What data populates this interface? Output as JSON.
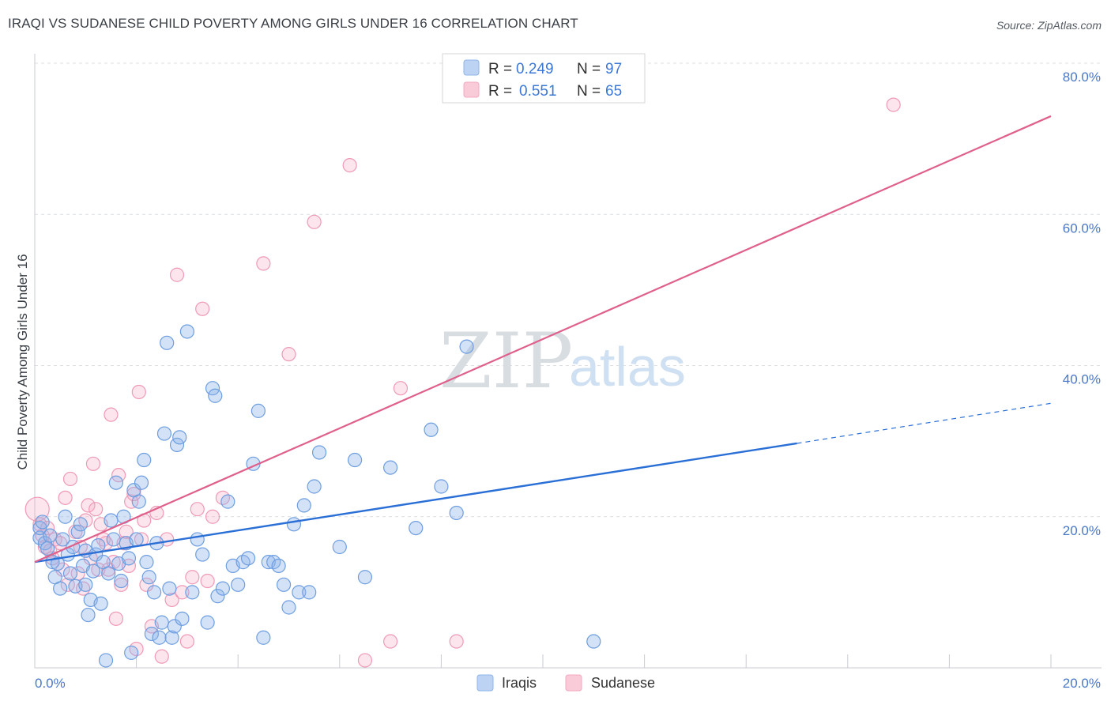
{
  "title": "IRAQI VS SUDANESE CHILD POVERTY AMONG GIRLS UNDER 16 CORRELATION CHART",
  "source": "Source: ZipAtlas.com",
  "watermark": {
    "zip": "ZIP",
    "atlas": "atlas"
  },
  "legend": {
    "rows": [
      {
        "r_label": "R =",
        "r_value": "0.249",
        "n_label": "N =",
        "n_value": "97",
        "color": "#8fb4e8"
      },
      {
        "r_label": "R =",
        "r_value": "0.551",
        "n_label": "N =",
        "n_value": "65",
        "color": "#f4a8c0"
      }
    ]
  },
  "bottom_legend": [
    "Iraqis",
    "Sudanese"
  ],
  "chart_data": {
    "type": "scatter",
    "title": "IRAQI VS SUDANESE CHILD POVERTY AMONG GIRLS UNDER 16 CORRELATION CHART",
    "xlabel": "",
    "ylabel": "Child Poverty Among Girls Under 16",
    "xlim": [
      0,
      20
    ],
    "ylim": [
      0,
      80
    ],
    "x_ticks": [
      "0.0%",
      "20.0%"
    ],
    "y_ticks": [
      "20.0%",
      "40.0%",
      "60.0%",
      "80.0%"
    ],
    "y_tick_values": [
      20,
      40,
      60,
      80
    ],
    "grid": true,
    "colors": {
      "Iraqis": "#2a6fd6",
      "Sudanese": "#e0608c"
    },
    "series": [
      {
        "name": "Iraqis",
        "trend": {
          "x0": 0.0,
          "y0": 14.0,
          "x1": 15.0,
          "y1": 29.7,
          "dash_x1": 20.0,
          "dash_y1": 35.0
        },
        "points": [
          [
            0.1,
            17.2
          ],
          [
            0.1,
            18.5
          ],
          [
            0.15,
            19.3
          ],
          [
            0.2,
            16.5
          ],
          [
            0.25,
            15.8
          ],
          [
            0.3,
            17.5
          ],
          [
            0.35,
            14.0
          ],
          [
            0.4,
            12.0
          ],
          [
            0.45,
            13.8
          ],
          [
            0.5,
            10.5
          ],
          [
            0.55,
            17.0
          ],
          [
            0.6,
            20.0
          ],
          [
            0.65,
            15.0
          ],
          [
            0.7,
            12.5
          ],
          [
            0.75,
            16.0
          ],
          [
            0.8,
            10.8
          ],
          [
            0.85,
            18.0
          ],
          [
            0.9,
            19.0
          ],
          [
            0.95,
            13.5
          ],
          [
            1.0,
            15.5
          ],
          [
            1.0,
            11.0
          ],
          [
            1.05,
            7.0
          ],
          [
            1.1,
            9.0
          ],
          [
            1.15,
            12.8
          ],
          [
            1.2,
            15.0
          ],
          [
            1.25,
            16.2
          ],
          [
            1.3,
            8.5
          ],
          [
            1.35,
            14.0
          ],
          [
            1.4,
            1.0
          ],
          [
            1.45,
            12.5
          ],
          [
            1.5,
            19.5
          ],
          [
            1.55,
            17.0
          ],
          [
            1.6,
            24.5
          ],
          [
            1.65,
            13.8
          ],
          [
            1.7,
            11.5
          ],
          [
            1.75,
            20.0
          ],
          [
            1.8,
            16.5
          ],
          [
            1.85,
            14.5
          ],
          [
            1.9,
            2.0
          ],
          [
            1.95,
            23.5
          ],
          [
            2.0,
            17.0
          ],
          [
            2.05,
            22.0
          ],
          [
            2.1,
            24.5
          ],
          [
            2.15,
            27.5
          ],
          [
            2.2,
            14.0
          ],
          [
            2.25,
            12.0
          ],
          [
            2.3,
            4.5
          ],
          [
            2.35,
            10.0
          ],
          [
            2.4,
            16.5
          ],
          [
            2.45,
            4.0
          ],
          [
            2.5,
            6.0
          ],
          [
            2.55,
            31.0
          ],
          [
            2.6,
            43.0
          ],
          [
            2.65,
            10.5
          ],
          [
            2.7,
            4.0
          ],
          [
            2.75,
            5.5
          ],
          [
            2.8,
            29.5
          ],
          [
            2.85,
            30.5
          ],
          [
            2.9,
            6.5
          ],
          [
            3.0,
            44.5
          ],
          [
            3.1,
            10.0
          ],
          [
            3.2,
            17.0
          ],
          [
            3.3,
            15.0
          ],
          [
            3.4,
            6.0
          ],
          [
            3.5,
            37.0
          ],
          [
            3.55,
            36.0
          ],
          [
            3.6,
            9.5
          ],
          [
            3.7,
            10.5
          ],
          [
            3.8,
            22.0
          ],
          [
            3.9,
            13.5
          ],
          [
            4.0,
            11.0
          ],
          [
            4.1,
            14.0
          ],
          [
            4.2,
            14.5
          ],
          [
            4.3,
            27.0
          ],
          [
            4.4,
            34.0
          ],
          [
            4.5,
            4.0
          ],
          [
            4.6,
            14.0
          ],
          [
            4.7,
            14.0
          ],
          [
            4.8,
            13.5
          ],
          [
            4.9,
            11.0
          ],
          [
            5.0,
            8.0
          ],
          [
            5.1,
            19.0
          ],
          [
            5.2,
            10.0
          ],
          [
            5.3,
            21.5
          ],
          [
            5.4,
            10.0
          ],
          [
            5.5,
            24.0
          ],
          [
            5.6,
            28.5
          ],
          [
            6.0,
            16.0
          ],
          [
            6.3,
            27.5
          ],
          [
            6.5,
            12.0
          ],
          [
            7.0,
            26.5
          ],
          [
            7.5,
            18.5
          ],
          [
            7.8,
            31.5
          ],
          [
            8.0,
            24.0
          ],
          [
            8.3,
            20.5
          ],
          [
            8.5,
            42.5
          ],
          [
            11.0,
            3.5
          ]
        ]
      },
      {
        "name": "Sudanese",
        "trend": {
          "x0": 0.0,
          "y0": 14.0,
          "x1": 20.0,
          "y1": 73.0
        },
        "points": [
          [
            0.05,
            21.0
          ],
          [
            0.1,
            19.0
          ],
          [
            0.15,
            17.5
          ],
          [
            0.2,
            16.0
          ],
          [
            0.25,
            18.5
          ],
          [
            0.3,
            15.5
          ],
          [
            0.35,
            14.5
          ],
          [
            0.4,
            17.0
          ],
          [
            0.5,
            16.5
          ],
          [
            0.55,
            13.0
          ],
          [
            0.6,
            22.5
          ],
          [
            0.65,
            11.0
          ],
          [
            0.7,
            25.0
          ],
          [
            0.8,
            18.0
          ],
          [
            0.85,
            12.5
          ],
          [
            0.9,
            16.0
          ],
          [
            0.95,
            10.5
          ],
          [
            1.0,
            19.5
          ],
          [
            1.05,
            21.5
          ],
          [
            1.1,
            14.5
          ],
          [
            1.15,
            27.0
          ],
          [
            1.2,
            21.0
          ],
          [
            1.25,
            13.0
          ],
          [
            1.3,
            19.0
          ],
          [
            1.35,
            17.0
          ],
          [
            1.4,
            16.5
          ],
          [
            1.45,
            13.0
          ],
          [
            1.5,
            33.5
          ],
          [
            1.55,
            14.0
          ],
          [
            1.6,
            6.5
          ],
          [
            1.65,
            25.5
          ],
          [
            1.7,
            11.0
          ],
          [
            1.75,
            16.5
          ],
          [
            1.8,
            18.0
          ],
          [
            1.85,
            13.5
          ],
          [
            1.9,
            22.0
          ],
          [
            1.95,
            23.0
          ],
          [
            2.0,
            2.5
          ],
          [
            2.05,
            36.5
          ],
          [
            2.1,
            17.0
          ],
          [
            2.15,
            19.5
          ],
          [
            2.2,
            11.0
          ],
          [
            2.3,
            5.5
          ],
          [
            2.4,
            20.5
          ],
          [
            2.5,
            1.5
          ],
          [
            2.6,
            17.0
          ],
          [
            2.7,
            9.0
          ],
          [
            2.8,
            52.0
          ],
          [
            2.9,
            10.0
          ],
          [
            3.0,
            3.5
          ],
          [
            3.1,
            12.0
          ],
          [
            3.2,
            21.0
          ],
          [
            3.3,
            47.5
          ],
          [
            3.4,
            11.5
          ],
          [
            3.5,
            20.0
          ],
          [
            3.7,
            22.5
          ],
          [
            4.5,
            53.5
          ],
          [
            5.0,
            41.5
          ],
          [
            5.5,
            59.0
          ],
          [
            6.2,
            66.5
          ],
          [
            6.5,
            1.0
          ],
          [
            7.2,
            37.0
          ],
          [
            8.3,
            3.5
          ],
          [
            16.9,
            74.5
          ],
          [
            7.0,
            3.5
          ]
        ]
      }
    ]
  }
}
